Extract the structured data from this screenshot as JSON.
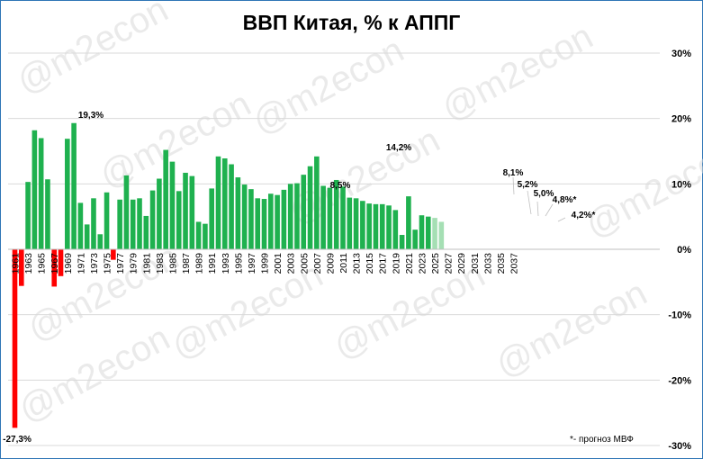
{
  "chart_data": {
    "type": "bar",
    "title": "ВВП Китая, % к АППГ",
    "ylim": [
      -30,
      30
    ],
    "y_ticks": [
      "30%",
      "20%",
      "10%",
      "0%",
      "-10%",
      "-20%",
      "-30%"
    ],
    "y_tick_values": [
      30,
      20,
      10,
      0,
      -10,
      -20,
      -30
    ],
    "x_ticks": [
      "1961",
      "1963",
      "1965",
      "1967",
      "1969",
      "1971",
      "1973",
      "1975",
      "1977",
      "1979",
      "1981",
      "1983",
      "1985",
      "1987",
      "1989",
      "1991",
      "1993",
      "1995",
      "1997",
      "1999",
      "2001",
      "2003",
      "2005",
      "2007",
      "2009",
      "2011",
      "2013",
      "2015",
      "2017",
      "2019",
      "2021",
      "2023",
      "2025",
      "2027",
      "2029",
      "2031",
      "2033",
      "2035",
      "2037"
    ],
    "years": [
      1961,
      1962,
      1963,
      1964,
      1965,
      1966,
      1967,
      1968,
      1969,
      1970,
      1971,
      1972,
      1973,
      1974,
      1975,
      1976,
      1977,
      1978,
      1979,
      1980,
      1981,
      1982,
      1983,
      1984,
      1985,
      1986,
      1987,
      1988,
      1989,
      1990,
      1991,
      1992,
      1993,
      1994,
      1995,
      1996,
      1997,
      1998,
      1999,
      2000,
      2001,
      2002,
      2003,
      2004,
      2005,
      2006,
      2007,
      2008,
      2009,
      2010,
      2011,
      2012,
      2013,
      2014,
      2015,
      2016,
      2017,
      2018,
      2019,
      2020,
      2021,
      2022,
      2023,
      2024,
      2025,
      2026
    ],
    "values": [
      -27.3,
      -5.6,
      10.3,
      18.2,
      17.0,
      10.7,
      -5.7,
      -4.1,
      16.9,
      19.3,
      7.1,
      3.8,
      7.8,
      2.3,
      8.7,
      -1.6,
      7.6,
      11.3,
      7.6,
      7.8,
      5.1,
      9.0,
      10.8,
      15.2,
      13.4,
      8.9,
      11.7,
      11.2,
      4.2,
      3.9,
      9.3,
      14.2,
      13.9,
      13.0,
      11.0,
      9.9,
      9.2,
      7.8,
      7.7,
      8.5,
      8.3,
      9.1,
      10.0,
      10.1,
      11.4,
      12.7,
      14.2,
      9.7,
      9.4,
      10.6,
      9.6,
      7.9,
      7.8,
      7.4,
      7.0,
      6.9,
      6.9,
      6.7,
      6.0,
      2.2,
      8.1,
      3.0,
      5.2,
      5.0,
      4.8,
      4.2
    ],
    "forecast": [
      false,
      false,
      false,
      false,
      false,
      false,
      false,
      false,
      false,
      false,
      false,
      false,
      false,
      false,
      false,
      false,
      false,
      false,
      false,
      false,
      false,
      false,
      false,
      false,
      false,
      false,
      false,
      false,
      false,
      false,
      false,
      false,
      false,
      false,
      false,
      false,
      false,
      false,
      false,
      false,
      false,
      false,
      false,
      false,
      false,
      false,
      false,
      false,
      false,
      false,
      false,
      false,
      false,
      false,
      false,
      false,
      false,
      false,
      false,
      false,
      false,
      false,
      false,
      false,
      true,
      true
    ],
    "annotations": [
      {
        "year": 1961,
        "label": "-27,3%"
      },
      {
        "year": 1970,
        "label": "19,3%"
      },
      {
        "year": 2000,
        "label": "8,5%"
      },
      {
        "year": 2007,
        "label": "14,2%"
      },
      {
        "year": 2021,
        "label": "8,1%"
      },
      {
        "year": 2023,
        "label": "5,2%"
      },
      {
        "year": 2024,
        "label": "5,0%"
      },
      {
        "year": 2025,
        "label": "4,8%*"
      },
      {
        "year": 2026,
        "label": "4,2%*"
      }
    ],
    "colors": {
      "positive": "#1fb14f",
      "negative": "#ff0000",
      "forecast": "#a5dfb4",
      "grid": "#d9d9d9",
      "frame": "#2e75b6"
    },
    "watermark": "@m2econ",
    "footnote": "*- прогноз МВФ",
    "grid": true,
    "legend": "none"
  }
}
